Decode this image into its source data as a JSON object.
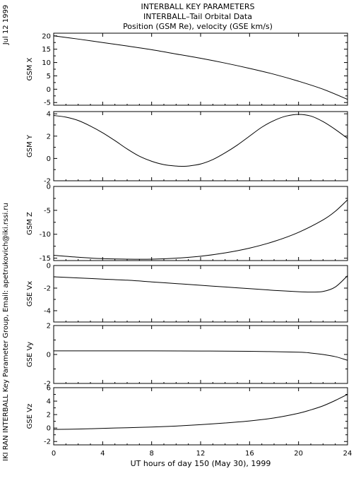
{
  "header": {
    "title1": "INTERBALL KEY PARAMETERS",
    "title2": "INTERBALL–Tail Orbital Data",
    "title3": "Position (GSM Re), velocity (GSE km/s)"
  },
  "side": {
    "date": "Jul 12 1999",
    "credit": "IKI RAN INTERBALL Key Parameter Group, Email: apetrukovich@iki.rssi.ru"
  },
  "chart_data": {
    "type": "line",
    "x_ticks": [
      0,
      4,
      8,
      12,
      16,
      20,
      24
    ],
    "x_range": [
      0,
      24
    ],
    "xlabel": "UT hours of day 150 (May 30), 1999",
    "panels": [
      {
        "id": "gsm-x",
        "ylabel": "GSM X",
        "ylim": [
          -6,
          21
        ],
        "yticks": [
          -5,
          0,
          5,
          10,
          15,
          20
        ],
        "x": [
          0,
          2,
          4,
          6,
          8,
          10,
          12,
          14,
          16,
          18,
          20,
          22,
          24
        ],
        "y": [
          20.0,
          18.8,
          17.5,
          16.2,
          14.8,
          13.2,
          11.6,
          9.8,
          7.8,
          5.6,
          3.0,
          0.0,
          -3.8
        ]
      },
      {
        "id": "gsm-y",
        "ylabel": "GSM Y",
        "ylim": [
          -2,
          4.2
        ],
        "yticks": [
          -2,
          0,
          2,
          4
        ],
        "x": [
          0,
          1,
          2,
          3,
          4,
          5,
          6,
          7,
          8,
          9,
          10,
          10.5,
          11,
          12,
          13,
          14,
          15,
          16,
          17,
          18,
          19,
          20,
          21,
          22,
          23,
          24
        ],
        "y": [
          3.85,
          3.7,
          3.4,
          2.9,
          2.3,
          1.6,
          0.85,
          0.2,
          -0.25,
          -0.55,
          -0.68,
          -0.7,
          -0.68,
          -0.5,
          -0.1,
          0.5,
          1.2,
          2.0,
          2.8,
          3.4,
          3.8,
          3.95,
          3.8,
          3.3,
          2.6,
          1.8
        ]
      },
      {
        "id": "gsm-z",
        "ylabel": "GSM Z",
        "ylim": [
          -15.5,
          0
        ],
        "yticks": [
          -15,
          -10,
          -5,
          0
        ],
        "x": [
          0,
          2,
          4,
          6,
          8,
          10,
          12,
          14,
          16,
          18,
          20,
          22,
          23,
          24
        ],
        "y": [
          -14.4,
          -14.8,
          -15.1,
          -15.2,
          -15.2,
          -15.0,
          -14.6,
          -13.9,
          -12.9,
          -11.5,
          -9.6,
          -7.0,
          -5.2,
          -2.8
        ]
      },
      {
        "id": "gse-vx",
        "ylabel": "GSE Vx",
        "ylim": [
          -5,
          0
        ],
        "yticks": [
          -4,
          -2,
          0
        ],
        "x": [
          0,
          2,
          4,
          6,
          8,
          10,
          12,
          14,
          16,
          18,
          20,
          21,
          22,
          23,
          24
        ],
        "y": [
          -1.0,
          -1.1,
          -1.2,
          -1.3,
          -1.45,
          -1.6,
          -1.75,
          -1.9,
          -2.05,
          -2.2,
          -2.32,
          -2.35,
          -2.3,
          -1.9,
          -0.9
        ]
      },
      {
        "id": "gse-vy",
        "ylabel": "GSE Vy",
        "ylim": [
          -2,
          2
        ],
        "yticks": [
          -2,
          0,
          2
        ],
        "x": [
          0,
          4,
          8,
          12,
          16,
          20,
          21,
          22,
          23,
          24
        ],
        "y": [
          0.25,
          0.25,
          0.25,
          0.24,
          0.22,
          0.16,
          0.1,
          0.0,
          -0.15,
          -0.4
        ]
      },
      {
        "id": "gse-vz",
        "ylabel": "GSE Vz",
        "ylim": [
          -2.5,
          6
        ],
        "yticks": [
          -2,
          0,
          2,
          4,
          6
        ],
        "x": [
          0,
          2,
          4,
          6,
          8,
          10,
          12,
          14,
          16,
          18,
          20,
          21,
          22,
          23,
          24
        ],
        "y": [
          -0.2,
          -0.15,
          -0.05,
          0.05,
          0.15,
          0.3,
          0.5,
          0.75,
          1.05,
          1.5,
          2.2,
          2.7,
          3.3,
          4.1,
          5.0
        ]
      }
    ]
  }
}
